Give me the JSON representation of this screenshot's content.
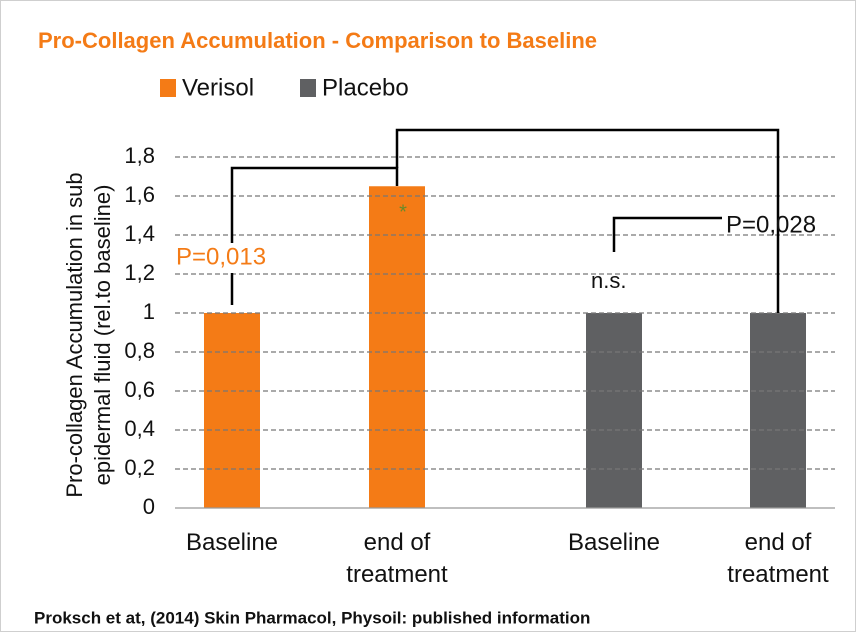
{
  "chart_data": {
    "type": "bar",
    "title": "Pro-Collagen Accumulation - Comparison to Baseline",
    "ylabel": [
      "Pro-collagen Accumulation in sub",
      "epidermal fluid (rel.to baseline)"
    ],
    "categories": [
      "Baseline",
      "end of treatment",
      "Baseline",
      "end of treatment"
    ],
    "series": [
      {
        "name": "Verisol",
        "color": "#f47b16",
        "values": [
          1,
          1.65,
          null,
          null
        ]
      },
      {
        "name": "Placebo",
        "color": "#5f6062",
        "values": [
          null,
          null,
          1,
          1
        ]
      }
    ],
    "ylim": [
      0,
      2.0
    ],
    "yticks": [
      0,
      {
        "value": 0.2,
        "label": "0,2"
      },
      {
        "value": 0.4,
        "label": "0,4"
      },
      {
        "value": 0.6,
        "label": "0,6"
      },
      {
        "value": 0.8,
        "label": "0,8"
      },
      1,
      {
        "value": 1.2,
        "label": "1,2"
      },
      {
        "value": 1.4,
        "label": "1,4"
      },
      {
        "value": 1.6,
        "label": "1,6"
      },
      {
        "value": 1.8,
        "label": "1,8"
      }
    ],
    "grid": true,
    "annotations": [
      "P=0,013",
      "*",
      "n.s.",
      "P=0,028"
    ],
    "source": "Proksch et at, (2014) Skin Pharmacol, Physoil: published information"
  }
}
